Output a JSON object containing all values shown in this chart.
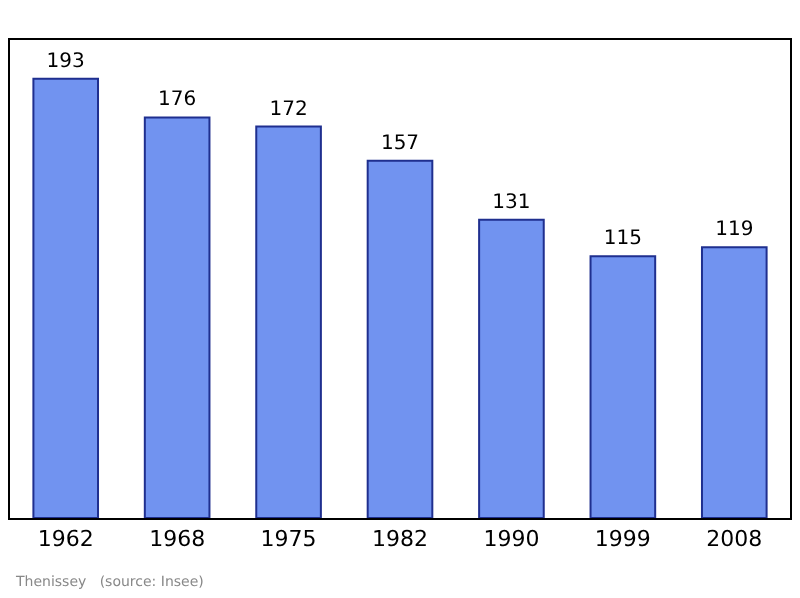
{
  "chart_data": {
    "type": "bar",
    "categories": [
      "1962",
      "1968",
      "1975",
      "1982",
      "1990",
      "1999",
      "2008"
    ],
    "values": [
      193,
      176,
      172,
      157,
      131,
      115,
      119
    ],
    "color": "#7193f0",
    "data_labels": true,
    "ylim": [
      0,
      210
    ],
    "tick_labels": "x",
    "annotations": [
      "Thenissey   (source: Insee)"
    ]
  }
}
